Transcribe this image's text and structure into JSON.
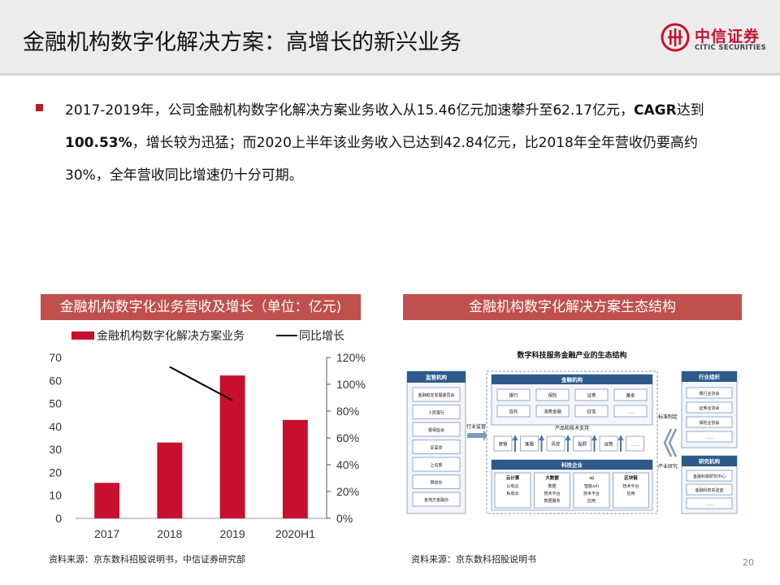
{
  "header": {
    "title": "金融机构数字化解决方案：高增长的新兴业务",
    "logo_cn": "中信证券",
    "logo_en": "CITIC SECURITIES",
    "logo_icon": "citic-logo-icon",
    "brand_color": "#c8102e"
  },
  "bullet": {
    "p1": "2017-2019年，公司金融机构数字化解决方案业务收入从15.46亿元加速攀升至62.17亿元，",
    "p2": "CAGR",
    "p3": "达到",
    "p4": "100.53%",
    "p5": "，增长较为迅猛；而2020上半年该业务收入已达到42.84亿元，比2018年全年营收仍要高约30%，全年营收同比增速仍十分可期。"
  },
  "left_panel": {
    "title": "金融机构数字化业务营收及增长（单位：亿元)"
  },
  "right_panel": {
    "title": "金融机构数字化解决方案生态结构"
  },
  "chart_data": {
    "type": "bar",
    "categories": [
      "2017",
      "2018",
      "2019",
      "2020H1"
    ],
    "series": [
      {
        "name": "金融机构数字化解决方案业务",
        "type": "bar",
        "axis": "left",
        "values": [
          15.46,
          33.0,
          62.17,
          42.84
        ],
        "color": "#c8102e"
      },
      {
        "name": "同比增长",
        "type": "line",
        "axis": "right",
        "values": [
          null,
          113,
          88,
          null
        ],
        "color": "#000000"
      }
    ],
    "ylim_left": [
      0,
      70
    ],
    "yticks_left": [
      "0",
      "10",
      "20",
      "30",
      "40",
      "50",
      "60",
      "70"
    ],
    "ylim_right": [
      0,
      120
    ],
    "yticks_right": [
      "0%",
      "20%",
      "40%",
      "60%",
      "80%",
      "100%",
      "120%"
    ],
    "legend_position": "top",
    "grid": false
  },
  "diagram": {
    "title": "数字科技服务金融产业的生态结构",
    "regulators": {
      "title": "监管机构",
      "items": [
        "金融稳定发展委员会",
        "人民银行",
        "银保监会",
        "证监会",
        "上信部",
        "网信办",
        "各地方金融办"
      ]
    },
    "label_industry_supervision": "行业监管",
    "financial": {
      "title": "金融机构",
      "items": [
        "银行",
        "保险",
        "证券",
        "基金",
        "信托",
        "消费金融",
        "征信",
        "……"
      ]
    },
    "support": {
      "title": "产品和技术支持",
      "items": [
        "营销",
        "客服",
        "风控",
        "投顾",
        "运营",
        "……"
      ]
    },
    "tech": {
      "title": "科技企业",
      "groups": [
        {
          "title": "云计算",
          "items": [
            "公有云",
            "私有云"
          ]
        },
        {
          "title": "大数据",
          "items": [
            "数据",
            "技术平台",
            "数据服务"
          ]
        },
        {
          "title": "AI",
          "items": [
            "智能API",
            "技术平台",
            "应用"
          ]
        },
        {
          "title": "区块链",
          "items": [
            "技术平台",
            "应用"
          ]
        }
      ]
    },
    "label_standard": "标准制定",
    "label_research": "产业研究",
    "industry_org": {
      "title": "行业组织",
      "items": [
        "银行业协会",
        "证券业协会",
        "保险业协会",
        "……"
      ]
    },
    "research_org": {
      "title": "研究机构",
      "items": [
        "金融科技研究中心",
        "金融科技实验室",
        "……"
      ]
    }
  },
  "sources": {
    "left": "资料来源：京东数科招股说明书，中信证券研究部",
    "right": "资料来源：京东数科招股说明书"
  },
  "page_number": "20"
}
